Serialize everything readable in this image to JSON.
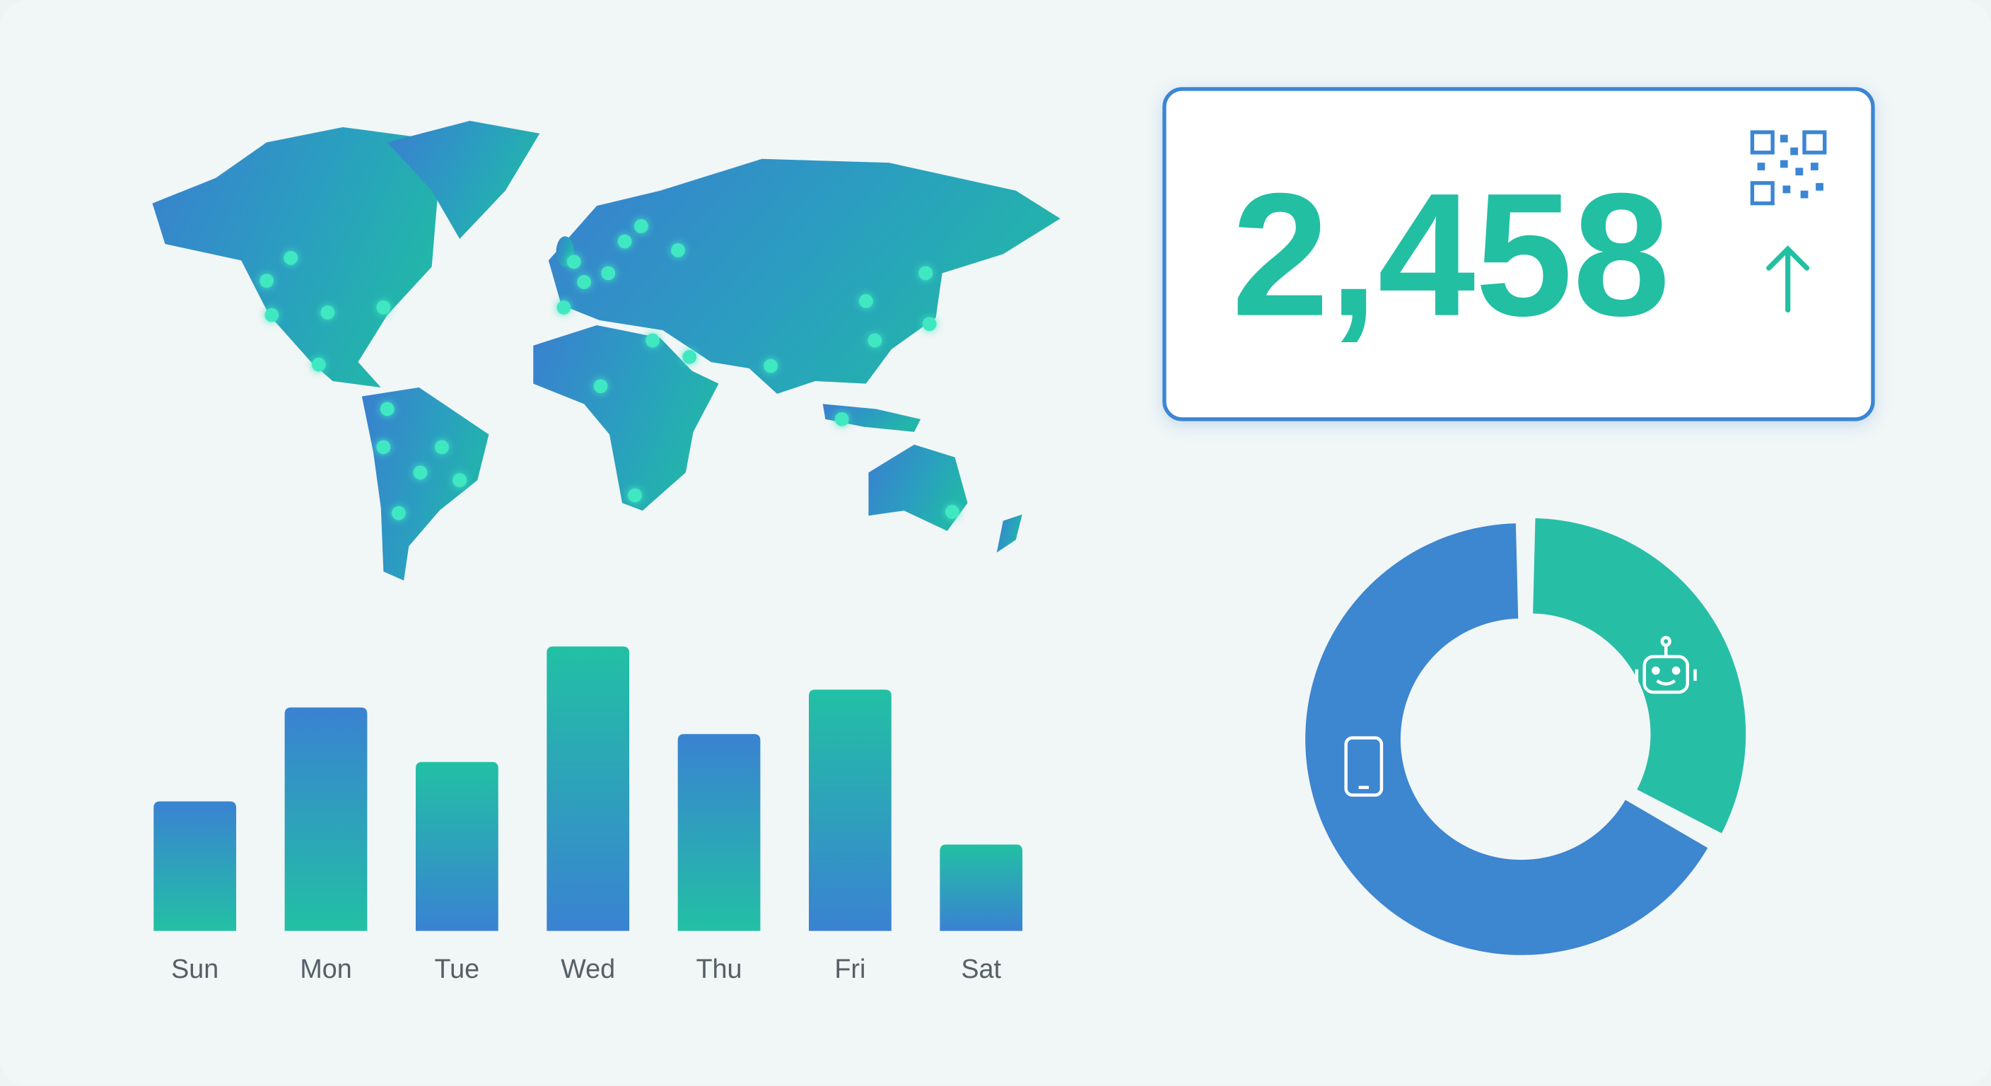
{
  "chart_data": [
    {
      "type": "bar",
      "categories": [
        "Sun",
        "Mon",
        "Tue",
        "Wed",
        "Thu",
        "Fri",
        "Sat"
      ],
      "values": [
        102,
        176,
        133,
        224,
        155,
        190,
        68
      ],
      "gradients": [
        [
          "#3a82d2",
          "#22c0a4"
        ],
        [
          "#3a82d2",
          "#22c0a4"
        ],
        [
          "#22c0a4",
          "#3a82d2"
        ],
        [
          "#22c0a4",
          "#3a82d2"
        ],
        [
          "#3a82d2",
          "#22c0a4"
        ],
        [
          "#22c0a4",
          "#3a82d2"
        ],
        [
          "#22c0a4",
          "#3a82d2"
        ]
      ]
    },
    {
      "type": "pie",
      "categories": [
        null,
        null
      ],
      "values": [
        33,
        67
      ],
      "colors": [
        "#27bea6",
        "#3d86d0"
      ]
    }
  ],
  "kpi": {
    "value": "2,458"
  }
}
